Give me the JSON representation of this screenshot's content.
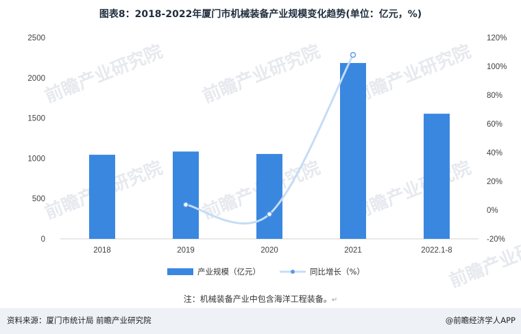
{
  "title": "图表8：2018-2022年厦门市机械装备产业规模变化趋势(单位：亿元，%)",
  "note": "注：机械装备产业中包含海洋工程装备。",
  "source": "资料来源：厦门市统计局 前瞻产业研究院",
  "brand": "@前瞻经济学人APP",
  "watermark": "前瞻产业研究院",
  "chart_data": {
    "type": "bar+line",
    "categories": [
      "2018",
      "2019",
      "2020",
      "2021",
      "2022.1-8"
    ],
    "series": [
      {
        "name": "产业规模（亿元）",
        "type": "bar",
        "axis": "left",
        "values": [
          1045,
          1085,
          1055,
          2185,
          1555
        ]
      },
      {
        "name": "同比增长（%）",
        "type": "line",
        "axis": "right",
        "smooth": true,
        "values": [
          null,
          3.8,
          -2.8,
          108,
          null
        ]
      }
    ],
    "y_left": {
      "min": 0,
      "max": 2500,
      "ticks": [
        0,
        500,
        1000,
        1500,
        2000,
        2500
      ],
      "tick_labels": [
        "0",
        "500",
        "1000",
        "1500",
        "2000",
        "2500"
      ]
    },
    "y_right": {
      "min": -20,
      "max": 120,
      "ticks": [
        -20,
        0,
        20,
        40,
        60,
        80,
        100,
        120
      ],
      "tick_labels": [
        "-20%",
        "0%",
        "20%",
        "40%",
        "60%",
        "80%",
        "100%",
        "120%"
      ]
    },
    "colors": {
      "bar": "#3a87e0",
      "line": "#c5dcf5",
      "marker": "#5b9be6"
    },
    "legend_position": "bottom",
    "grid": false
  }
}
